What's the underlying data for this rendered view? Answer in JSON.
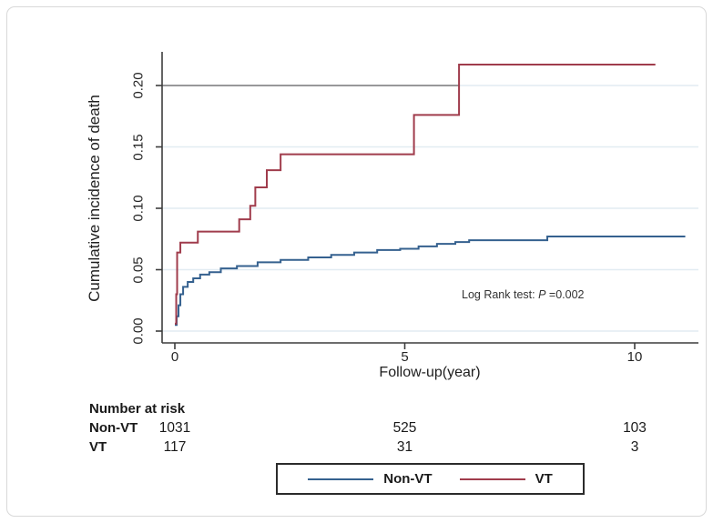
{
  "chart_data": {
    "type": "line",
    "subtype": "step-cumulative-incidence",
    "title": "",
    "xlabel": "Follow-up(year)",
    "ylabel": "Cumulative incidence of death",
    "x_ticks": [
      0,
      5,
      10
    ],
    "y_ticks": [
      "0.00",
      "0.05",
      "0.10",
      "0.15",
      "0.20"
    ],
    "xlim": [
      0,
      11.4
    ],
    "ylim": [
      0,
      0.228
    ],
    "grid": true,
    "reference_line": {
      "y": 0.2,
      "x_start": 0,
      "x_end": 6.18
    },
    "series": [
      {
        "name": "Non-VT",
        "color": "#35618f",
        "end_x": 11.1,
        "steps": [
          [
            0,
            0.005
          ],
          [
            0.04,
            0.012
          ],
          [
            0.08,
            0.021
          ],
          [
            0.12,
            0.03
          ],
          [
            0.18,
            0.036
          ],
          [
            0.28,
            0.04
          ],
          [
            0.4,
            0.043
          ],
          [
            0.55,
            0.046
          ],
          [
            0.75,
            0.048
          ],
          [
            1.0,
            0.051
          ],
          [
            1.35,
            0.053
          ],
          [
            1.8,
            0.056
          ],
          [
            2.3,
            0.058
          ],
          [
            2.9,
            0.06
          ],
          [
            3.4,
            0.062
          ],
          [
            3.9,
            0.064
          ],
          [
            4.4,
            0.066
          ],
          [
            4.9,
            0.067
          ],
          [
            5.3,
            0.069
          ],
          [
            5.7,
            0.071
          ],
          [
            6.1,
            0.0725
          ],
          [
            6.4,
            0.074
          ],
          [
            8.1,
            0.077
          ]
        ]
      },
      {
        "name": "VT",
        "color": "#a03c4c",
        "end_x": 10.45,
        "steps": [
          [
            0,
            0.006
          ],
          [
            0.03,
            0.03
          ],
          [
            0.05,
            0.064
          ],
          [
            0.12,
            0.072
          ],
          [
            0.5,
            0.081
          ],
          [
            1.4,
            0.091
          ],
          [
            1.64,
            0.102
          ],
          [
            1.75,
            0.117
          ],
          [
            2.0,
            0.131
          ],
          [
            2.3,
            0.144
          ],
          [
            5.2,
            0.176
          ],
          [
            6.18,
            0.217
          ]
        ]
      }
    ],
    "annotation": {
      "prefix": "Log Rank test: ",
      "p": "P",
      "suffix": " =0.002"
    }
  },
  "risk_table": {
    "header": "Number at risk",
    "rows": [
      {
        "label": "Non-VT",
        "values": [
          "1031",
          "525",
          "103"
        ]
      },
      {
        "label": "VT",
        "values": [
          "117",
          "31",
          "3"
        ]
      }
    ]
  },
  "legend": {
    "items": [
      {
        "label": "Non-VT",
        "color": "#35618f"
      },
      {
        "label": "VT",
        "color": "#a03c4c"
      }
    ]
  },
  "colors": {
    "non_vt_line": "#35618f",
    "vt_line": "#a03c4c",
    "reference_line": "#7a7a7a",
    "gridline": "#e2ecf2",
    "axis": "#3d3d3d",
    "text": "#1a1a1a"
  }
}
